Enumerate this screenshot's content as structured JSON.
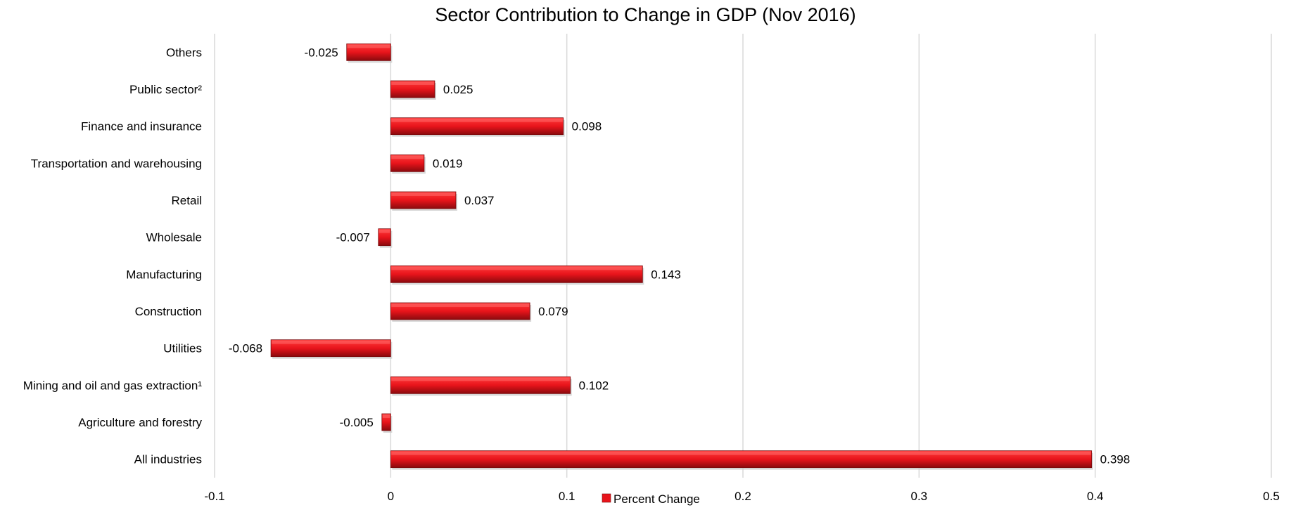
{
  "chart_data": {
    "type": "bar",
    "orientation": "horizontal",
    "title": "Sector Contribution to Change in GDP (Nov 2016)",
    "xlabel": "",
    "ylabel": "",
    "xlim": [
      -0.1,
      0.5
    ],
    "xticks": [
      -0.1,
      0,
      0.1,
      0.2,
      0.3,
      0.4,
      0.5
    ],
    "xtick_labels": [
      "-0.1",
      "0",
      "0.1",
      "0.2",
      "0.3",
      "0.4",
      "0.5"
    ],
    "grid": "vertical",
    "legend_position": "bottom",
    "categories": [
      "Others",
      "Public sector²",
      "Finance and insurance",
      "Transportation and warehousing",
      "Retail",
      "Wholesale",
      "Manufacturing",
      "Construction",
      "Utilities",
      "Mining and oil and gas extraction¹",
      "Agriculture and forestry",
      "All industries"
    ],
    "series": [
      {
        "name": "Percent Change",
        "color": "#e8141b",
        "values": [
          -0.025,
          0.025,
          0.098,
          0.019,
          0.037,
          -0.007,
          0.143,
          0.079,
          -0.068,
          0.102,
          -0.005,
          0.398
        ],
        "value_labels": [
          "-0.025",
          "0.025",
          "0.098",
          "0.019",
          "0.037",
          "-0.007",
          "0.143",
          "0.079",
          "-0.068",
          "0.102",
          "-0.005",
          "0.398"
        ]
      }
    ]
  }
}
